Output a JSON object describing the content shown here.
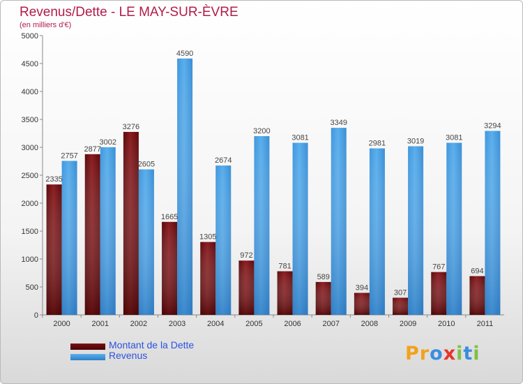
{
  "title": "Revenus/Dette - LE MAY-SUR-ÈVRE",
  "subtitle": "(en milliers d'€)",
  "legend": {
    "debt_label": "Montant de la Dette",
    "revenue_label": "Revenus"
  },
  "logo": {
    "letters": [
      "P",
      "r",
      "o",
      "x",
      "i",
      "t",
      "i"
    ],
    "colors": [
      "#f2a21b",
      "#f2a21b",
      "#3a8de0",
      "#e8342a",
      "#7cc242",
      "#3a8de0",
      "#7cc242"
    ]
  },
  "colors": {
    "debt": "#7a1417",
    "debt_dark": "#4a0000",
    "revenue": "#4fa6e8",
    "revenue_dark": "#2f7fc7",
    "title": "#b21c4a"
  },
  "chart_data": {
    "type": "bar",
    "categories": [
      "2000",
      "2001",
      "2002",
      "2003",
      "2004",
      "2005",
      "2006",
      "2007",
      "2008",
      "2009",
      "2010",
      "2011"
    ],
    "series": [
      {
        "name": "Montant de la Dette",
        "values": [
          2335,
          2877,
          3276,
          1665,
          1305,
          972,
          781,
          589,
          394,
          307,
          767,
          694
        ],
        "labels": [
          "2335",
          "2877",
          "3276",
          "1665",
          "1305",
          "972",
          "781",
          "589",
          "394",
          "307",
          "767",
          "694"
        ]
      },
      {
        "name": "Revenus",
        "values": [
          2757,
          3002,
          2605,
          4590,
          2674,
          3200,
          3081,
          3349,
          2981,
          3019,
          3081,
          3294
        ],
        "labels": [
          "2757",
          "3002",
          "2605",
          "4590",
          "2674",
          "3200",
          "3081",
          "3349",
          "2981",
          "3019",
          "3081",
          "3294"
        ]
      }
    ],
    "yticks": [
      "0",
      "500",
      "1000",
      "1500",
      "2000",
      "2500",
      "3000",
      "3500",
      "4000",
      "4500",
      "5000"
    ],
    "ylim": [
      0,
      5000
    ],
    "grid": false,
    "legend_position": "bottom-left"
  }
}
